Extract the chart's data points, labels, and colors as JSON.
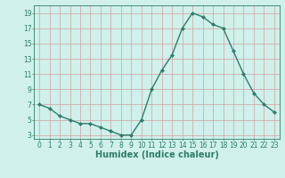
{
  "x": [
    0,
    1,
    2,
    3,
    4,
    5,
    6,
    7,
    8,
    9,
    10,
    11,
    12,
    13,
    14,
    15,
    16,
    17,
    18,
    19,
    20,
    21,
    22,
    23
  ],
  "y": [
    7,
    6.5,
    5.5,
    5,
    4.5,
    4.5,
    4,
    3.5,
    3,
    3,
    5,
    9,
    11.5,
    13.5,
    17,
    19,
    18.5,
    17.5,
    17,
    14,
    11,
    8.5,
    7,
    6
  ],
  "line_color": "#2e7d6b",
  "marker": "D",
  "marker_size": 2.0,
  "bg_color": "#cff0eb",
  "grid_color": "#b8ddd7",
  "xlabel": "Humidex (Indice chaleur)",
  "ylim": [
    2.5,
    20
  ],
  "xlim": [
    -0.5,
    23.5
  ],
  "yticks": [
    3,
    5,
    7,
    9,
    11,
    13,
    15,
    17,
    19
  ],
  "xticks": [
    0,
    1,
    2,
    3,
    4,
    5,
    6,
    7,
    8,
    9,
    10,
    11,
    12,
    13,
    14,
    15,
    16,
    17,
    18,
    19,
    20,
    21,
    22,
    23
  ],
  "tick_label_size": 5.5,
  "xlabel_size": 7.0,
  "line_width": 1.0
}
